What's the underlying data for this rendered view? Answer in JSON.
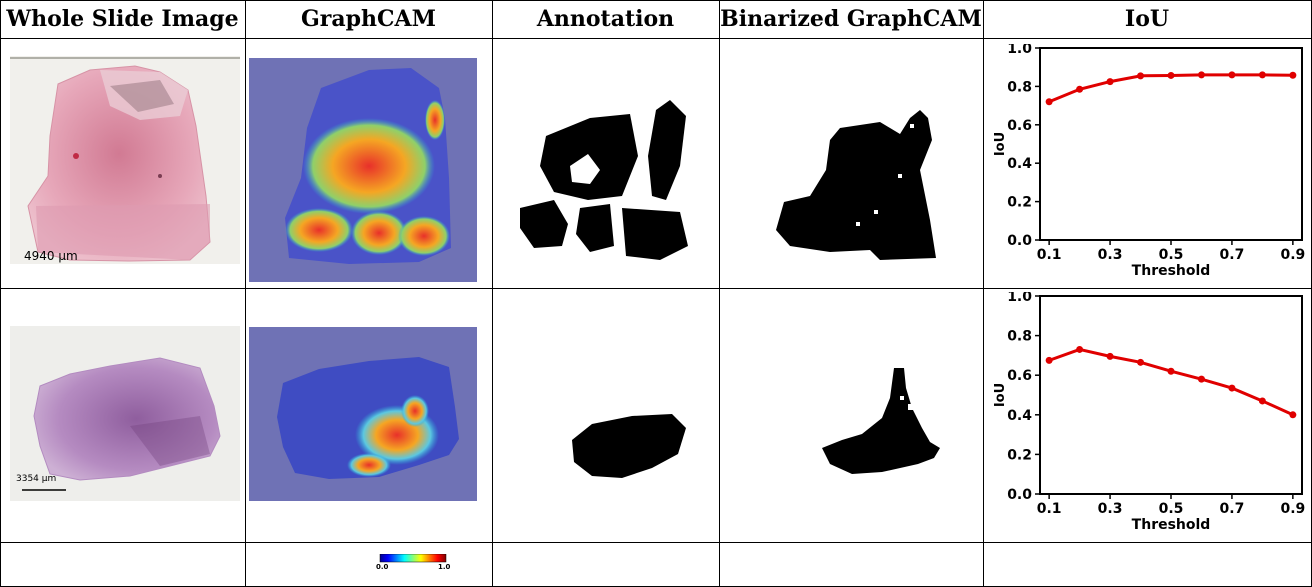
{
  "headers": [
    "Whole Slide Image",
    "GraphCAM",
    "Annotation",
    "Binarized GraphCAM",
    "IoU"
  ],
  "rows": [
    {
      "scale_bar": "4940 µm"
    },
    {
      "scale_bar": "3354 µm"
    }
  ],
  "colorbar": {
    "min_label": "0.0",
    "max_label": "1.0"
  },
  "chart_data": [
    {
      "type": "line",
      "xlabel": "Threshold",
      "ylabel": "IoU",
      "x": [
        0.1,
        0.2,
        0.3,
        0.4,
        0.5,
        0.6,
        0.7,
        0.8,
        0.9
      ],
      "xticks": [
        "0.1",
        "0.3",
        "0.5",
        "0.7",
        "0.9"
      ],
      "yticks": [
        "0.0",
        "0.2",
        "0.4",
        "0.6",
        "0.8",
        "1.0"
      ],
      "ylim": [
        0,
        1.0
      ],
      "series": [
        {
          "values": [
            0.72,
            0.785,
            0.825,
            0.855,
            0.857,
            0.86,
            0.86,
            0.86,
            0.858
          ],
          "color": "#e00000"
        }
      ]
    },
    {
      "type": "line",
      "xlabel": "Threshold",
      "ylabel": "IoU",
      "x": [
        0.1,
        0.2,
        0.3,
        0.4,
        0.5,
        0.6,
        0.7,
        0.8,
        0.9
      ],
      "xticks": [
        "0.1",
        "0.3",
        "0.5",
        "0.7",
        "0.9"
      ],
      "yticks": [
        "0.0",
        "0.2",
        "0.4",
        "0.6",
        "0.8",
        "1.0"
      ],
      "ylim": [
        0,
        1.0
      ],
      "series": [
        {
          "values": [
            0.675,
            0.73,
            0.695,
            0.665,
            0.62,
            0.58,
            0.535,
            0.47,
            0.4
          ],
          "color": "#e00000"
        }
      ]
    }
  ]
}
